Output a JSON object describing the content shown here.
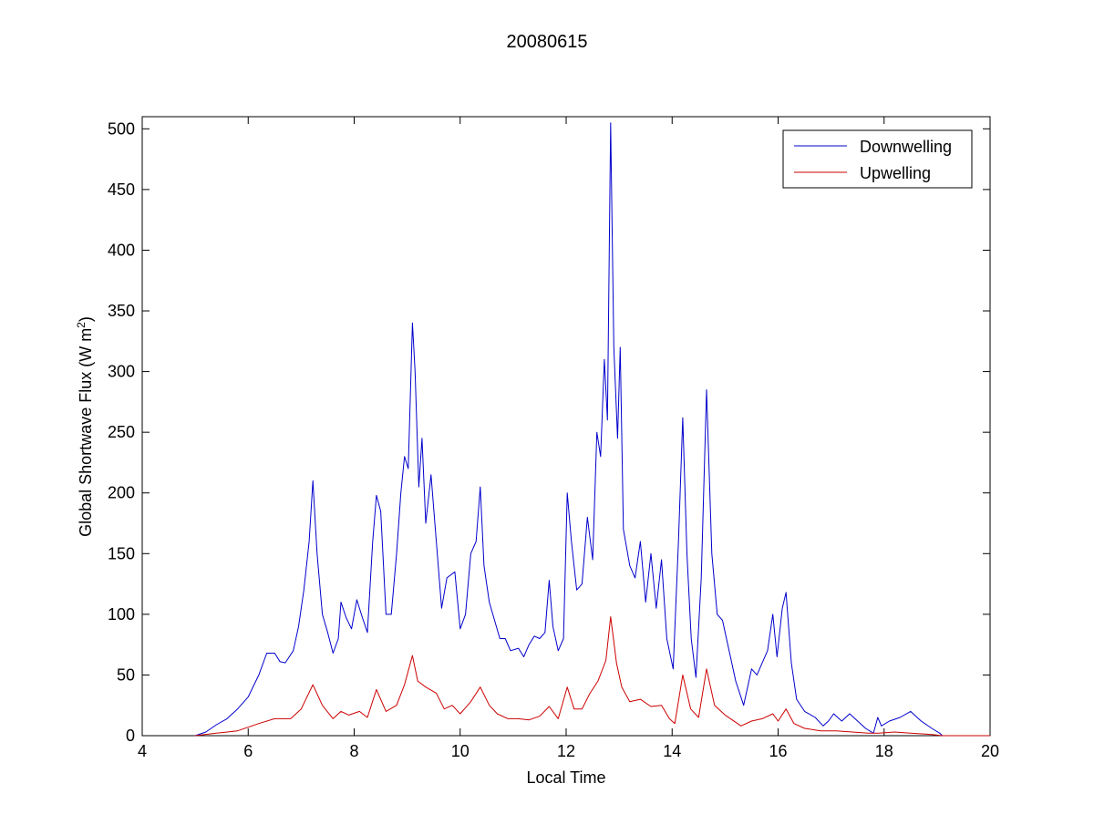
{
  "chart_data": {
    "type": "line",
    "title": "20080615",
    "xlabel": "Local Time",
    "ylabel_main": "Global Shortwave Flux (W m",
    "ylabel_sup": "2",
    "ylabel_close": ")",
    "xlim": [
      4,
      20
    ],
    "ylim": [
      0,
      510
    ],
    "x_ticks": [
      "4",
      "6",
      "8",
      "10",
      "12",
      "14",
      "16",
      "18",
      "20"
    ],
    "y_ticks": [
      "0",
      "50",
      "100",
      "150",
      "200",
      "250",
      "300",
      "350",
      "400",
      "450",
      "500"
    ],
    "grid": false,
    "legend_position": "top-right",
    "series": [
      {
        "name": "Downwelling",
        "color": "#0000cc",
        "points": [
          [
            5.0,
            0
          ],
          [
            5.2,
            3
          ],
          [
            5.4,
            9
          ],
          [
            5.6,
            14
          ],
          [
            5.8,
            22
          ],
          [
            6.0,
            32
          ],
          [
            6.2,
            50
          ],
          [
            6.35,
            68
          ],
          [
            6.5,
            68
          ],
          [
            6.6,
            61
          ],
          [
            6.7,
            60
          ],
          [
            6.85,
            70
          ],
          [
            6.95,
            90
          ],
          [
            7.05,
            120
          ],
          [
            7.15,
            160
          ],
          [
            7.22,
            210
          ],
          [
            7.3,
            150
          ],
          [
            7.4,
            100
          ],
          [
            7.5,
            85
          ],
          [
            7.6,
            68
          ],
          [
            7.7,
            80
          ],
          [
            7.75,
            110
          ],
          [
            7.85,
            97
          ],
          [
            7.95,
            88
          ],
          [
            8.05,
            112
          ],
          [
            8.15,
            98
          ],
          [
            8.25,
            85
          ],
          [
            8.35,
            160
          ],
          [
            8.42,
            198
          ],
          [
            8.5,
            185
          ],
          [
            8.6,
            100
          ],
          [
            8.7,
            100
          ],
          [
            8.8,
            150
          ],
          [
            8.88,
            200
          ],
          [
            8.95,
            230
          ],
          [
            9.02,
            220
          ],
          [
            9.1,
            340
          ],
          [
            9.15,
            300
          ],
          [
            9.22,
            205
          ],
          [
            9.28,
            245
          ],
          [
            9.35,
            175
          ],
          [
            9.45,
            215
          ],
          [
            9.55,
            160
          ],
          [
            9.65,
            105
          ],
          [
            9.75,
            130
          ],
          [
            9.9,
            135
          ],
          [
            10.0,
            88
          ],
          [
            10.1,
            100
          ],
          [
            10.2,
            150
          ],
          [
            10.3,
            160
          ],
          [
            10.38,
            205
          ],
          [
            10.45,
            140
          ],
          [
            10.55,
            110
          ],
          [
            10.65,
            95
          ],
          [
            10.75,
            80
          ],
          [
            10.85,
            80
          ],
          [
            10.95,
            70
          ],
          [
            11.1,
            72
          ],
          [
            11.2,
            65
          ],
          [
            11.3,
            75
          ],
          [
            11.4,
            82
          ],
          [
            11.5,
            80
          ],
          [
            11.6,
            85
          ],
          [
            11.68,
            128
          ],
          [
            11.75,
            90
          ],
          [
            11.85,
            70
          ],
          [
            11.95,
            80
          ],
          [
            12.02,
            200
          ],
          [
            12.1,
            160
          ],
          [
            12.2,
            120
          ],
          [
            12.3,
            125
          ],
          [
            12.4,
            180
          ],
          [
            12.5,
            145
          ],
          [
            12.58,
            250
          ],
          [
            12.65,
            230
          ],
          [
            12.72,
            310
          ],
          [
            12.78,
            260
          ],
          [
            12.84,
            505
          ],
          [
            12.9,
            320
          ],
          [
            12.97,
            245
          ],
          [
            13.02,
            320
          ],
          [
            13.08,
            170
          ],
          [
            13.2,
            140
          ],
          [
            13.3,
            130
          ],
          [
            13.4,
            160
          ],
          [
            13.5,
            110
          ],
          [
            13.6,
            150
          ],
          [
            13.7,
            105
          ],
          [
            13.8,
            145
          ],
          [
            13.9,
            80
          ],
          [
            14.02,
            55
          ],
          [
            14.12,
            160
          ],
          [
            14.2,
            262
          ],
          [
            14.28,
            150
          ],
          [
            14.36,
            80
          ],
          [
            14.45,
            48
          ],
          [
            14.55,
            130
          ],
          [
            14.65,
            285
          ],
          [
            14.75,
            150
          ],
          [
            14.85,
            100
          ],
          [
            14.95,
            95
          ],
          [
            15.05,
            75
          ],
          [
            15.2,
            45
          ],
          [
            15.35,
            25
          ],
          [
            15.5,
            55
          ],
          [
            15.6,
            50
          ],
          [
            15.7,
            60
          ],
          [
            15.8,
            70
          ],
          [
            15.9,
            100
          ],
          [
            15.98,
            65
          ],
          [
            16.08,
            105
          ],
          [
            16.15,
            118
          ],
          [
            16.25,
            60
          ],
          [
            16.35,
            30
          ],
          [
            16.5,
            20
          ],
          [
            16.7,
            15
          ],
          [
            16.85,
            8
          ],
          [
            16.95,
            12
          ],
          [
            17.05,
            18
          ],
          [
            17.2,
            12
          ],
          [
            17.35,
            18
          ],
          [
            17.5,
            12
          ],
          [
            17.65,
            6
          ],
          [
            17.8,
            2
          ],
          [
            17.88,
            15
          ],
          [
            17.95,
            8
          ],
          [
            18.1,
            12
          ],
          [
            18.3,
            15
          ],
          [
            18.5,
            20
          ],
          [
            18.7,
            12
          ],
          [
            18.9,
            6
          ],
          [
            19.05,
            2
          ],
          [
            19.1,
            0
          ],
          [
            20.0,
            0
          ]
        ]
      },
      {
        "name": "Upwelling",
        "color": "#cc0000",
        "points": [
          [
            5.0,
            0
          ],
          [
            5.4,
            2
          ],
          [
            5.8,
            4
          ],
          [
            6.2,
            10
          ],
          [
            6.5,
            14
          ],
          [
            6.8,
            14
          ],
          [
            7.0,
            22
          ],
          [
            7.22,
            42
          ],
          [
            7.4,
            25
          ],
          [
            7.6,
            14
          ],
          [
            7.75,
            20
          ],
          [
            7.9,
            17
          ],
          [
            8.1,
            20
          ],
          [
            8.25,
            15
          ],
          [
            8.42,
            38
          ],
          [
            8.6,
            20
          ],
          [
            8.8,
            25
          ],
          [
            8.95,
            42
          ],
          [
            9.1,
            66
          ],
          [
            9.2,
            45
          ],
          [
            9.35,
            40
          ],
          [
            9.55,
            35
          ],
          [
            9.7,
            22
          ],
          [
            9.85,
            25
          ],
          [
            10.0,
            18
          ],
          [
            10.2,
            28
          ],
          [
            10.38,
            40
          ],
          [
            10.55,
            25
          ],
          [
            10.7,
            18
          ],
          [
            10.9,
            14
          ],
          [
            11.1,
            14
          ],
          [
            11.3,
            13
          ],
          [
            11.5,
            16
          ],
          [
            11.68,
            24
          ],
          [
            11.85,
            14
          ],
          [
            12.02,
            40
          ],
          [
            12.15,
            22
          ],
          [
            12.3,
            22
          ],
          [
            12.45,
            35
          ],
          [
            12.6,
            45
          ],
          [
            12.75,
            62
          ],
          [
            12.84,
            98
          ],
          [
            12.95,
            60
          ],
          [
            13.05,
            40
          ],
          [
            13.2,
            28
          ],
          [
            13.4,
            30
          ],
          [
            13.6,
            24
          ],
          [
            13.8,
            25
          ],
          [
            13.95,
            14
          ],
          [
            14.05,
            10
          ],
          [
            14.2,
            50
          ],
          [
            14.35,
            22
          ],
          [
            14.5,
            15
          ],
          [
            14.65,
            55
          ],
          [
            14.8,
            25
          ],
          [
            15.0,
            17
          ],
          [
            15.3,
            8
          ],
          [
            15.5,
            12
          ],
          [
            15.7,
            14
          ],
          [
            15.9,
            18
          ],
          [
            16.0,
            12
          ],
          [
            16.15,
            22
          ],
          [
            16.3,
            10
          ],
          [
            16.5,
            6
          ],
          [
            16.8,
            4
          ],
          [
            17.1,
            4
          ],
          [
            17.4,
            3
          ],
          [
            17.7,
            2
          ],
          [
            17.9,
            2
          ],
          [
            18.2,
            3
          ],
          [
            18.5,
            2
          ],
          [
            18.9,
            1
          ],
          [
            19.1,
            0
          ],
          [
            20.0,
            0
          ]
        ]
      }
    ]
  }
}
